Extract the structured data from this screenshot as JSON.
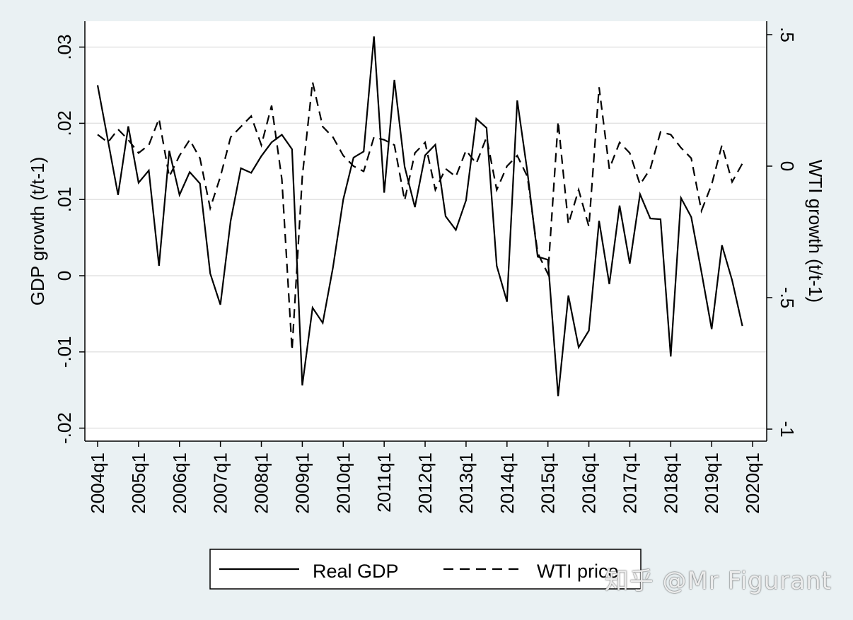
{
  "chart_data": {
    "type": "line",
    "xlabel": "",
    "ylabel": "GDP growth (t/t-1)",
    "y2label": "WTI growth (t/t-1)",
    "ylim": [
      -0.02,
      0.03
    ],
    "y2lim": [
      -1,
      0.5
    ],
    "yticks": [
      -0.02,
      -0.01,
      0,
      0.01,
      0.02,
      0.03
    ],
    "ytick_labels": [
      "-.02",
      "-.01",
      "0",
      ".01",
      ".02",
      ".03"
    ],
    "y2ticks": [
      -1,
      -0.5,
      0,
      0.5
    ],
    "y2tick_labels": [
      "-1",
      "-.5",
      "0",
      ".5"
    ],
    "xtick_labels": [
      "2004q1",
      "2005q1",
      "2006q1",
      "2007q1",
      "2008q1",
      "2009q1",
      "2010q1",
      "2011q1",
      "2012q1",
      "2013q1",
      "2014q1",
      "2015q1",
      "2016q1",
      "2017q1",
      "2018q1",
      "2019q1",
      "2020q1"
    ],
    "x_start": "2004q1",
    "grid": true,
    "legend_position": "bottom",
    "series": [
      {
        "name": "Real GDP",
        "axis": "left",
        "style": "solid",
        "values": [
          0.025,
          0.0178,
          0.0106,
          0.0196,
          0.0122,
          0.0138,
          0.0013,
          0.0164,
          0.0106,
          0.0136,
          0.0121,
          0.0003,
          -0.0038,
          0.0072,
          0.0141,
          0.0135,
          0.0157,
          0.0175,
          0.0185,
          0.0166,
          -0.0144,
          -0.0042,
          -0.0062,
          0.0011,
          0.01,
          0.0155,
          0.0163,
          0.0314,
          0.0109,
          0.0257,
          0.0143,
          0.009,
          0.0158,
          0.0172,
          0.0078,
          0.006,
          0.0099,
          0.0206,
          0.0194,
          0.0013,
          -0.0034,
          0.023,
          0.0136,
          0.0025,
          0.0021,
          -0.0158,
          -0.0026,
          -0.0094,
          -0.0072,
          0.0072,
          -0.0011,
          0.0092,
          0.0016,
          0.0107,
          0.0075,
          0.0074,
          -0.0106,
          0.0102,
          0.0077,
          0.0005,
          -0.007,
          0.004,
          -0.0006,
          -0.0066
        ]
      },
      {
        "name": "WTI price",
        "axis": "right",
        "style": "dashed",
        "values": [
          0.12,
          0.09,
          0.14,
          0.1,
          0.05,
          0.08,
          0.18,
          -0.04,
          0.04,
          0.1,
          0.03,
          -0.16,
          -0.04,
          0.11,
          0.15,
          0.19,
          0.08,
          0.23,
          -0.05,
          -0.7,
          -0.04,
          0.32,
          0.15,
          0.11,
          0.04,
          0.0,
          -0.02,
          0.11,
          0.1,
          0.08,
          -0.13,
          0.05,
          0.09,
          -0.09,
          -0.01,
          -0.04,
          0.06,
          0.01,
          0.11,
          -0.09,
          0.0,
          0.04,
          -0.04,
          -0.33,
          -0.41,
          0.17,
          -0.22,
          -0.09,
          -0.23,
          0.3,
          -0.01,
          0.09,
          0.05,
          -0.07,
          -0.01,
          0.13,
          0.12,
          0.07,
          0.03,
          -0.17,
          -0.07,
          0.08,
          -0.06,
          0.01
        ]
      }
    ]
  },
  "legend": {
    "gdp_label": "Real GDP",
    "wti_label": "WTI price"
  },
  "watermark": "知乎 @Mr Figurant"
}
